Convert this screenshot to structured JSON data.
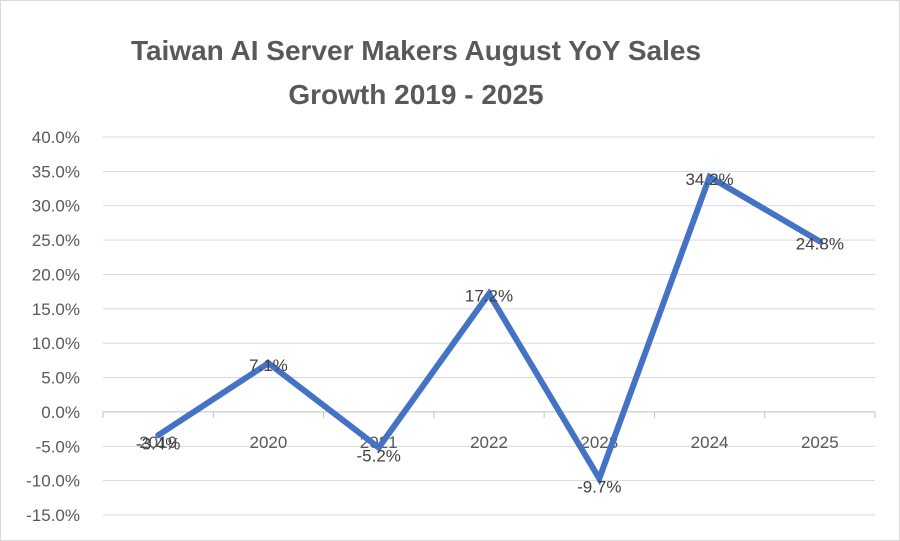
{
  "chart_data": {
    "type": "line",
    "title_lines": [
      "Taiwan AI Server Makers August YoY Sales",
      "Growth 2019 - 2025"
    ],
    "categories": [
      "2019",
      "2020",
      "2021",
      "2022",
      "2023",
      "2024",
      "2025"
    ],
    "series": [
      {
        "values": [
          -3.4,
          7.1,
          -5.2,
          17.2,
          -9.7,
          34.2,
          24.8
        ],
        "labels": [
          "-3.4%",
          "7.1%",
          "-5.2%",
          "17.2%",
          "-9.7%",
          "34.2%",
          "24.8%"
        ],
        "color": "#4472c4"
      }
    ],
    "y_ticks": [
      "40.0%",
      "35.0%",
      "30.0%",
      "25.0%",
      "20.0%",
      "15.0%",
      "10.0%",
      "5.0%",
      "0.0%",
      "-5.0%",
      "-10.0%",
      "-15.0%"
    ],
    "ylim": [
      -15,
      40
    ],
    "y_step": 5,
    "grid": true,
    "gridline_color": "#d9d9d9",
    "legend": "none"
  }
}
